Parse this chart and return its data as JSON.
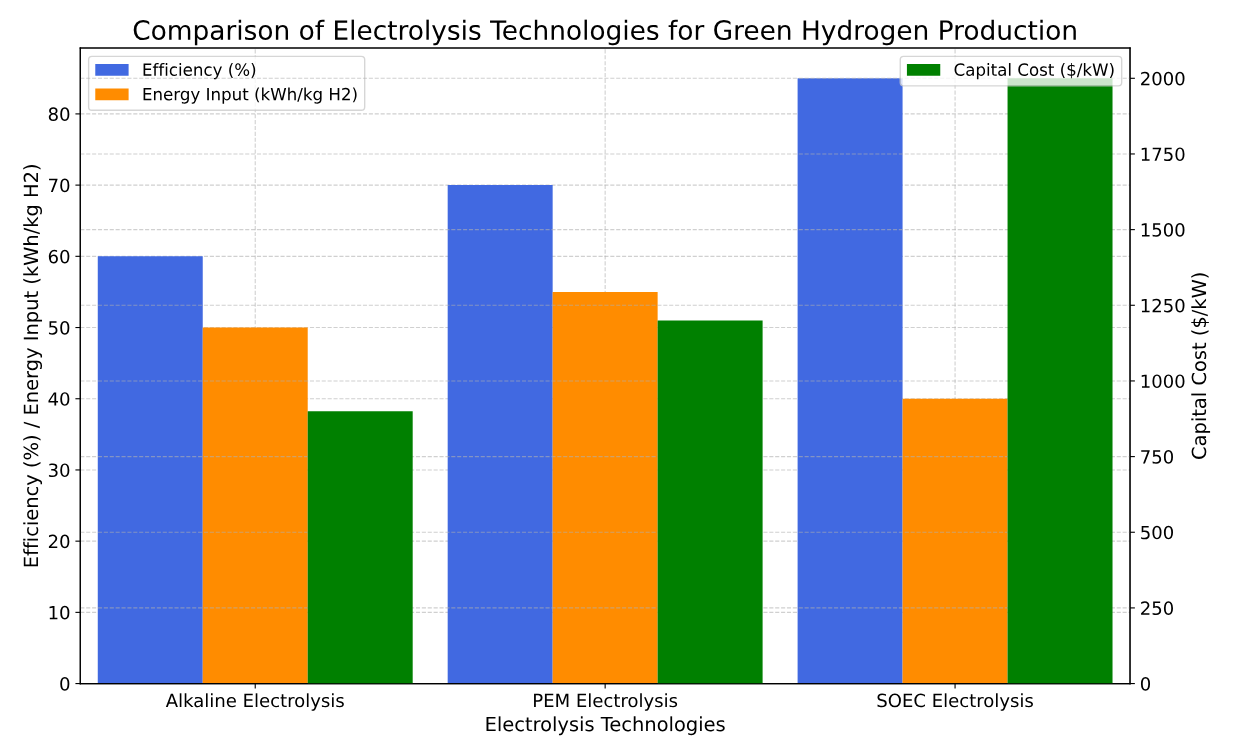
{
  "chart_data": {
    "type": "bar",
    "title": "Comparison of Electrolysis Technologies for Green Hydrogen Production",
    "xlabel": "Electrolysis Technologies",
    "ylabel": "Efficiency (%) / Energy Input (kWh/kg H2)",
    "y2label": "Capital Cost ($/kW)",
    "categories": [
      "Alkaline Electrolysis",
      "PEM Electrolysis",
      "SOEC Electrolysis"
    ],
    "series": [
      {
        "name": "Efficiency (%)",
        "color": "#4169e1",
        "values": [
          60,
          70,
          85
        ]
      },
      {
        "name": "Energy Input (kWh/kg H2)",
        "color": "#ff8c00",
        "values": [
          50,
          55,
          40
        ]
      },
      {
        "name": "Capital Cost ($/kW)",
        "color": "#008000",
        "values": [
          900,
          1200,
          2000
        ],
        "axis": "y2"
      }
    ],
    "ylim": [
      0,
      89.25
    ],
    "yticks": [
      0,
      10,
      20,
      30,
      40,
      50,
      60,
      70,
      80
    ],
    "y2lim": [
      0,
      2100
    ],
    "y2ticks": [
      0,
      250,
      500,
      750,
      1000,
      1250,
      1500,
      1750,
      2000
    ],
    "grid": true,
    "legend": "top left"
  }
}
